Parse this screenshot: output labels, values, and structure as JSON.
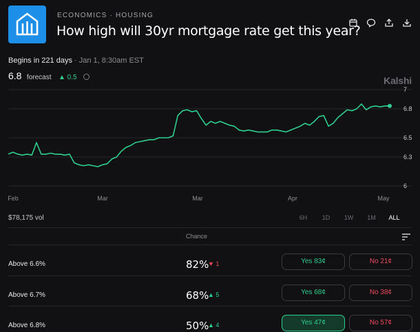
{
  "header": {
    "category": "ECONOMICS · HOUSING",
    "title": "How high will 30yr mortgage rate get this year?",
    "actions": [
      "calendar-icon",
      "comment-icon",
      "share-icon",
      "download-icon"
    ]
  },
  "status": {
    "begins": "Begins in 221 days",
    "date": "· Jan 1, 8:30am EST"
  },
  "forecast": {
    "value": "6.8",
    "label": "forecast",
    "delta": "▲ 0.5"
  },
  "brand": "Kalshi",
  "chart_data": {
    "type": "line",
    "x_ticks": [
      "Feb",
      "Mar",
      "Mar",
      "Apr",
      "May"
    ],
    "y_ticks": [
      "7",
      "6.8",
      "6.5",
      "6.3",
      "6"
    ],
    "ylim": [
      6,
      7
    ],
    "series": [
      {
        "color": "#2ecf8f",
        "values": [
          6.33,
          6.35,
          6.33,
          6.32,
          6.33,
          6.32,
          6.45,
          6.33,
          6.33,
          6.34,
          6.33,
          6.33,
          6.32,
          6.33,
          6.24,
          6.22,
          6.21,
          6.22,
          6.21,
          6.2,
          6.22,
          6.23,
          6.28,
          6.3,
          6.36,
          6.4,
          6.42,
          6.45,
          6.46,
          6.47,
          6.48,
          6.48,
          6.5,
          6.5,
          6.5,
          6.52,
          6.73,
          6.78,
          6.79,
          6.77,
          6.78,
          6.7,
          6.63,
          6.67,
          6.65,
          6.67,
          6.65,
          6.63,
          6.62,
          6.58,
          6.57,
          6.58,
          6.57,
          6.56,
          6.56,
          6.56,
          6.58,
          6.58,
          6.57,
          6.56,
          6.58,
          6.6,
          6.62,
          6.65,
          6.63,
          6.67,
          6.72,
          6.73,
          6.62,
          6.65,
          6.71,
          6.75,
          6.79,
          6.78,
          6.8,
          6.85,
          6.79,
          6.82,
          6.83,
          6.82,
          6.83,
          6.83
        ]
      }
    ]
  },
  "volume": "$78,175 vol",
  "ranges": [
    "6H",
    "1D",
    "1W",
    "1M",
    "ALL"
  ],
  "active_range": "ALL",
  "table": {
    "chance_header": "Chance",
    "rows": [
      {
        "label": "Above 6.6%",
        "chance": "82%",
        "change": "▼ 1",
        "yes": "Yes 83¢",
        "no": "No 21¢"
      },
      {
        "label": "Above 6.7%",
        "chance": "68%",
        "change": "▲ 5",
        "yes": "Yes 68¢",
        "no": "No 38¢"
      },
      {
        "label": "Above 6.8%",
        "chance": "50%",
        "change": "▲ 4",
        "yes": "Yes 47¢",
        "no": "No 57¢"
      }
    ]
  },
  "colors": {
    "accent": "#2ecf8f",
    "negative": "#ef4a5c",
    "logo_bg": "#1e8fe8",
    "background": "#111114"
  }
}
